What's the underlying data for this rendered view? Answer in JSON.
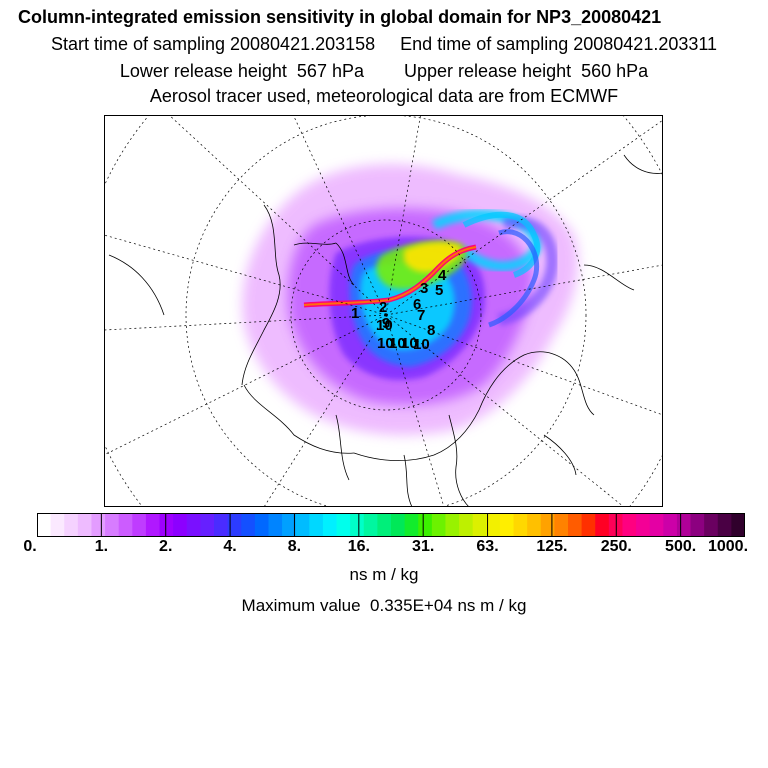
{
  "header": {
    "title": "Column-integrated emission sensitivity in global domain for NP3_20080421",
    "sampling_line": "Start time of sampling 20080421.203158     End time of sampling 20080421.203311",
    "release_line": "Lower release height  567 hPa        Upper release height  560 hPa",
    "tracer_line": "Aerosol tracer used, meteorological data are from ECMWF"
  },
  "map": {
    "projection": "north-polar-stereographic",
    "point_labels": [
      "1",
      "2",
      "3",
      "4",
      "5",
      "6",
      "7",
      "8",
      "9",
      "10",
      "10",
      "10",
      "10",
      "10"
    ]
  },
  "colorbar": {
    "tick_labels": [
      "0.",
      "1.",
      "2.",
      "4.",
      "8.",
      "16.",
      "31.",
      "63.",
      "125.",
      "250.",
      "500.",
      "1000."
    ],
    "colors": [
      "#ffffff",
      "#fbe9ff",
      "#f5d2ff",
      "#eebbff",
      "#e39cff",
      "#d77cff",
      "#cc5cff",
      "#bf3cff",
      "#b018ff",
      "#9e00ff",
      "#8c00ff",
      "#7a10ff",
      "#6620ff",
      "#4a2cff",
      "#2c3cff",
      "#1450ff",
      "#0068ff",
      "#0084ff",
      "#00a0ff",
      "#00bcff",
      "#00d8ff",
      "#00f0ff",
      "#00ffec",
      "#00ffc8",
      "#00f7a0",
      "#00ef7a",
      "#00e858",
      "#12ec2c",
      "#3cf000",
      "#6cf200",
      "#98f200",
      "#bef000",
      "#dcf000",
      "#f2f000",
      "#ffee00",
      "#ffd800",
      "#ffc000",
      "#ffa200",
      "#ff8200",
      "#ff5c00",
      "#ff3000",
      "#ff0024",
      "#ff0058",
      "#ff0080",
      "#f40096",
      "#e400a4",
      "#cc00a8",
      "#b00098",
      "#8c0080",
      "#6a0060",
      "#4a0044",
      "#30002c"
    ],
    "units": "ns m / kg",
    "max_value": "Maximum value  0.335E+04 ns m / kg"
  }
}
